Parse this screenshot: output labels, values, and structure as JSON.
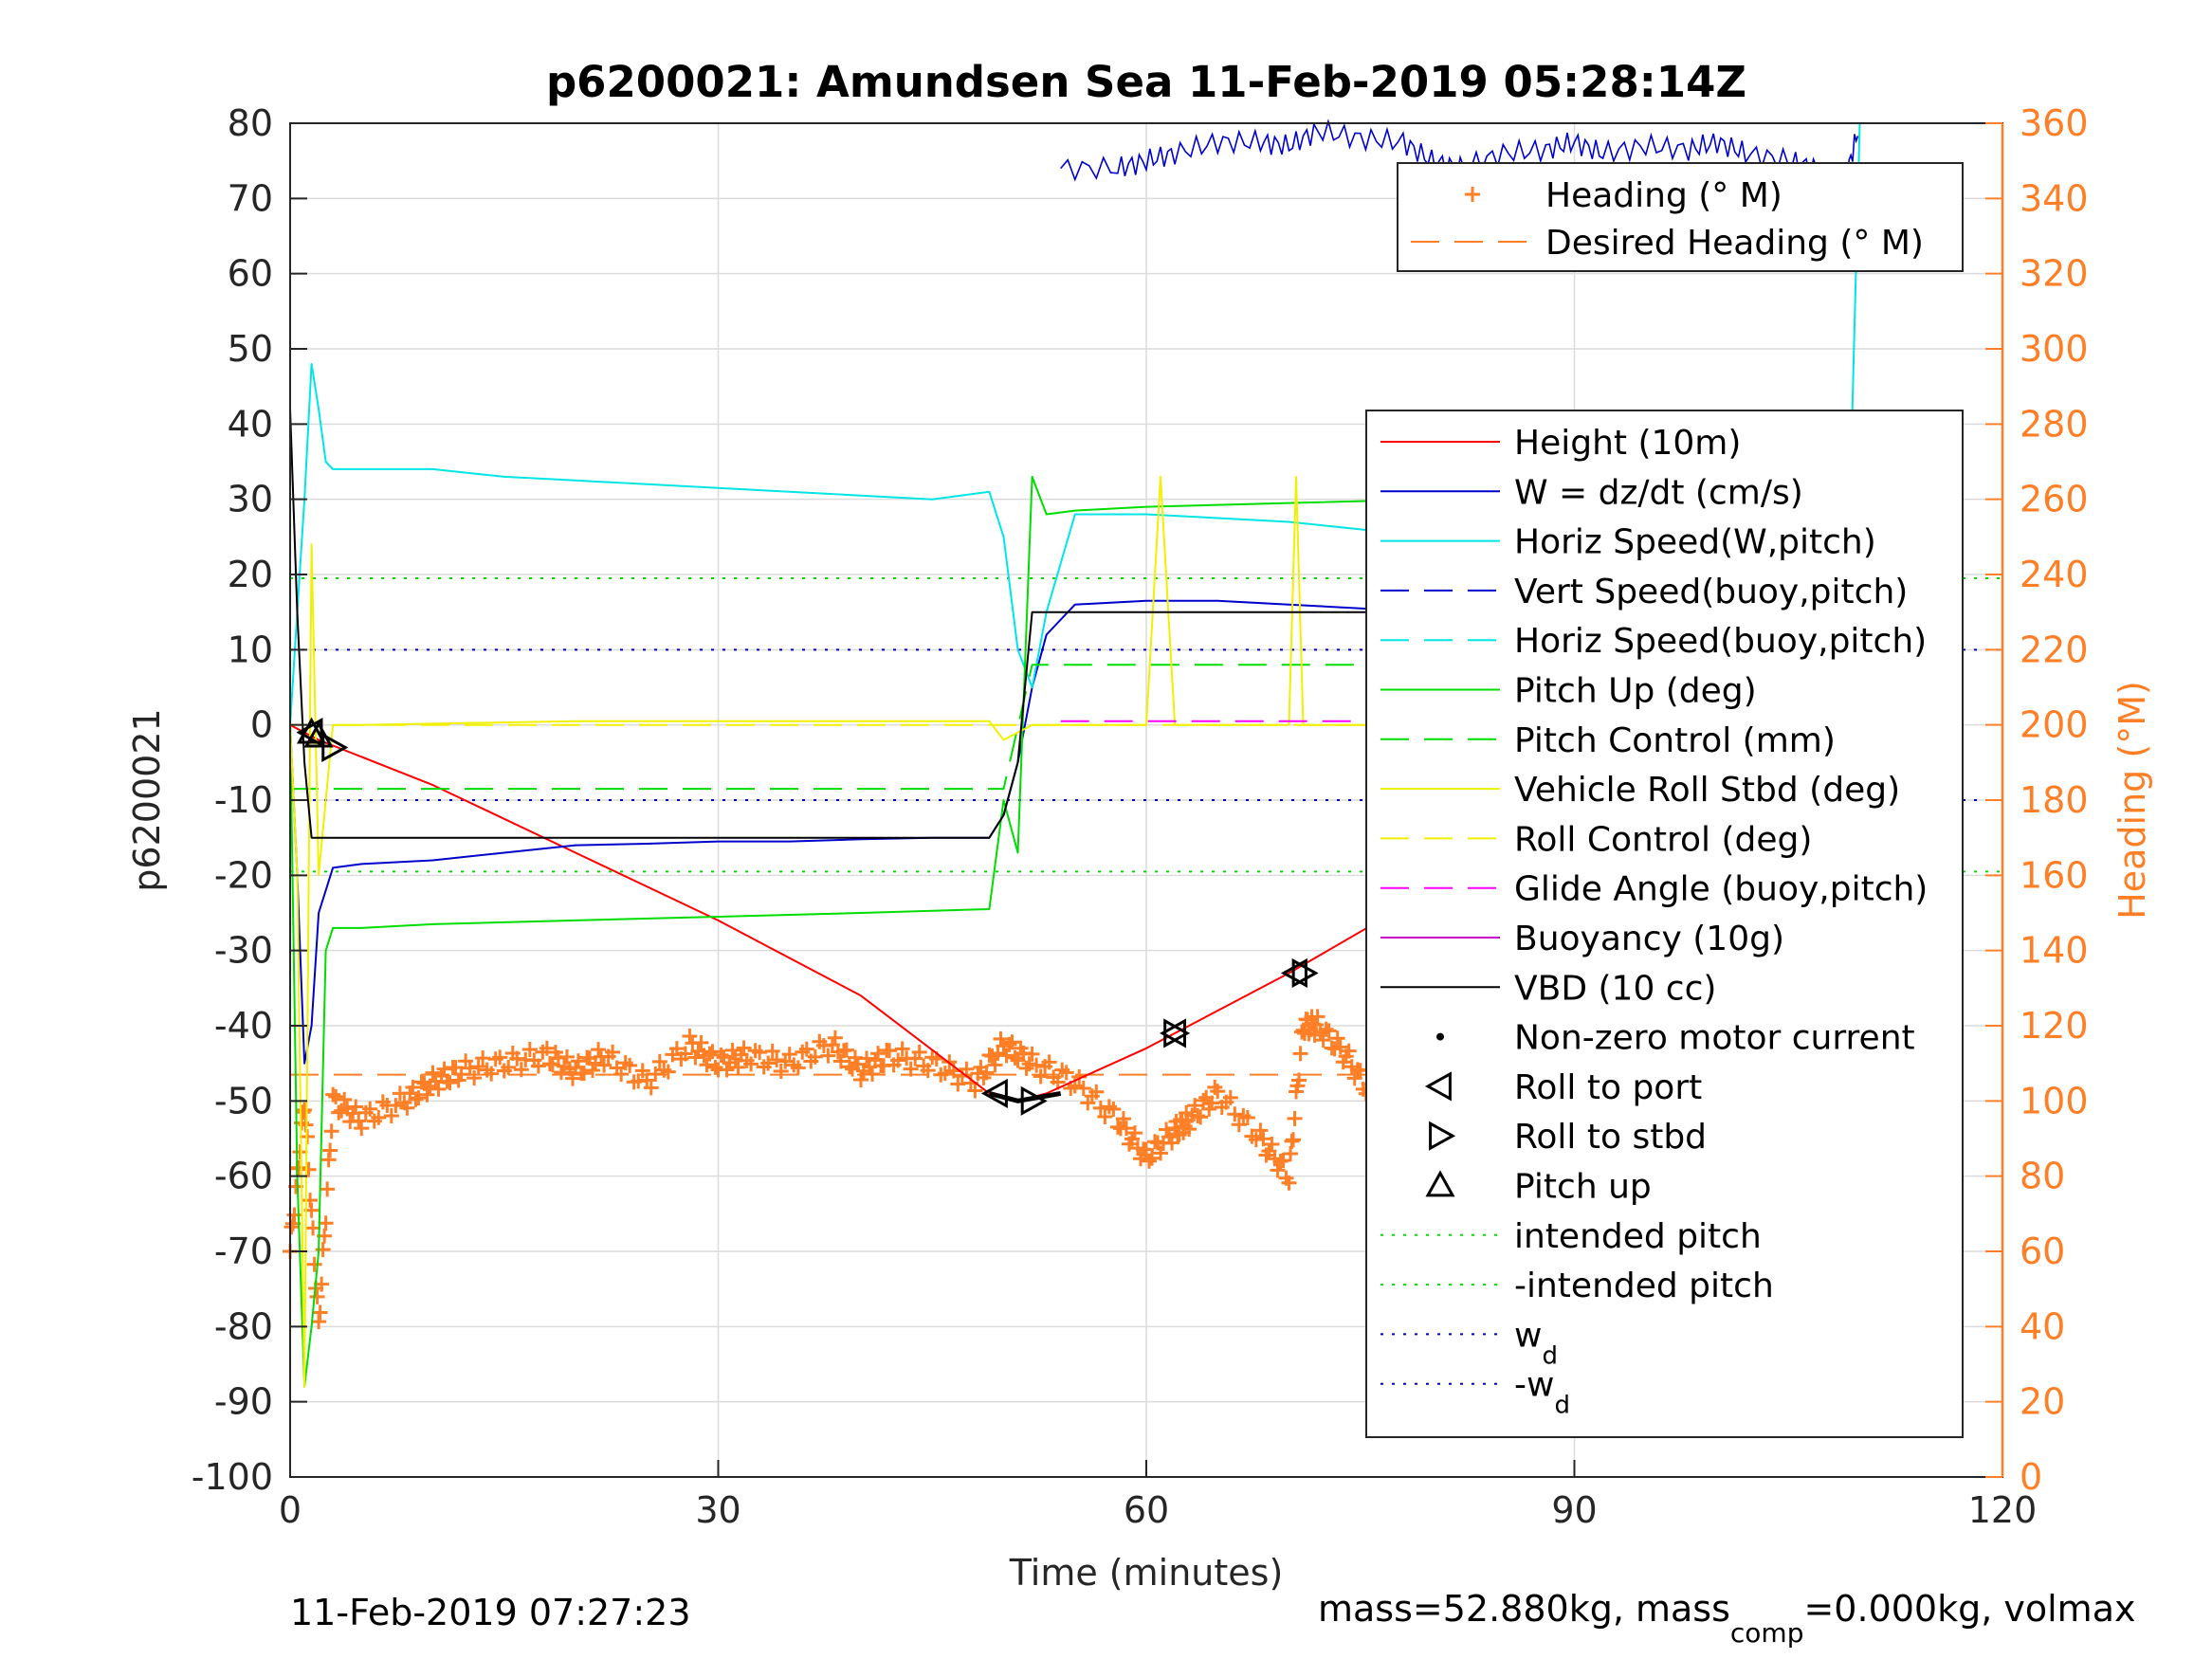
{
  "chart_data": {
    "type": "line",
    "title": "p6200021: Amundsen Sea 11-Feb-2019 05:28:14Z",
    "xlabel": "Time (minutes)",
    "ylabel": "p6200021",
    "y2label": "Heading (°M)",
    "xlim": [
      0,
      120
    ],
    "ylim": [
      -100,
      80
    ],
    "y2lim": [
      0,
      360
    ],
    "xticks": [
      "0",
      "30",
      "60",
      "90",
      "120"
    ],
    "yticks": [
      "80",
      "70",
      "60",
      "50",
      "40",
      "30",
      "20",
      "10",
      "0",
      "-10",
      "-20",
      "-30",
      "-40",
      "-50",
      "-60",
      "-70",
      "-80",
      "-90",
      "-100"
    ],
    "y2ticks": [
      "360",
      "340",
      "320",
      "300",
      "280",
      "260",
      "240",
      "220",
      "200",
      "180",
      "160",
      "140",
      "120",
      "100",
      "80",
      "60",
      "40",
      "20",
      "0"
    ],
    "grid": true,
    "heading_legend": {
      "placement": "top-right",
      "entries": [
        {
          "label": "Heading (° M)",
          "color": "#FF7F27",
          "style": "plus"
        },
        {
          "label": "Desired Heading (° M)",
          "color": "#FF7F27",
          "style": "dashed"
        }
      ]
    },
    "legend": {
      "placement": "right",
      "entries": [
        {
          "label": "Height (10m)",
          "color": "#FF0000",
          "style": "solid"
        },
        {
          "label": "W = dz/dt (cm/s)",
          "color": "#0000CC",
          "style": "solid"
        },
        {
          "label": "Horiz Speed(W,pitch)",
          "color": "#00E5E5",
          "style": "solid"
        },
        {
          "label": "Vert Speed(buoy,pitch)",
          "color": "#0000CC",
          "style": "dashed"
        },
        {
          "label": "Horiz Speed(buoy,pitch)",
          "color": "#00E5E5",
          "style": "dashed"
        },
        {
          "label": "Pitch Up (deg)",
          "color": "#00DD00",
          "style": "solid"
        },
        {
          "label": "Pitch Control (mm)",
          "color": "#00DD00",
          "style": "dashed"
        },
        {
          "label": "Vehicle Roll Stbd (deg)",
          "color": "#F0F000",
          "style": "solid"
        },
        {
          "label": "Roll Control (deg)",
          "color": "#F0F000",
          "style": "dashed"
        },
        {
          "label": "Glide Angle (buoy,pitch)",
          "color": "#FF00FF",
          "style": "dashed"
        },
        {
          "label": "Buoyancy (10g)",
          "color": "#CC00CC",
          "style": "solid"
        },
        {
          "label": "VBD (10 cc)",
          "color": "#000000",
          "style": "solid"
        },
        {
          "label": "Non-zero motor current",
          "color": "#000000",
          "style": "dot"
        },
        {
          "label": "Roll to port",
          "color": "#000000",
          "style": "tri-left"
        },
        {
          "label": "Roll to stbd",
          "color": "#000000",
          "style": "tri-right"
        },
        {
          "label": "Pitch up",
          "color": "#000000",
          "style": "tri-up"
        },
        {
          "label": "intended pitch",
          "color": "#00DD00",
          "style": "dotted"
        },
        {
          "label": "-intended pitch",
          "color": "#00DD00",
          "style": "dotted"
        },
        {
          "label": "w",
          "sub": "d",
          "color": "#0000CC",
          "style": "dotted"
        },
        {
          "label": "-w",
          "sub": "d",
          "color": "#0000CC",
          "style": "dotted"
        }
      ]
    },
    "hlines": [
      {
        "name": "intended pitch",
        "y": 19.5,
        "color": "#00DD00"
      },
      {
        "name": "-intended pitch",
        "y": -19.5,
        "color": "#00DD00"
      },
      {
        "name": "w_d",
        "y": 10,
        "color": "#0000CC"
      },
      {
        "name": "-w_d",
        "y": -10,
        "color": "#0000CC"
      }
    ],
    "desired_heading": 107,
    "series": [
      {
        "name": "Height (10m)",
        "color": "#FF0000",
        "style": "solid",
        "x": [
          0,
          1,
          2,
          10,
          20,
          30,
          40,
          49,
          51,
          53,
          60,
          70,
          80,
          90,
          100,
          107,
          110
        ],
        "y": [
          0,
          -1,
          -2,
          -8,
          -17,
          -26,
          -36,
          -49,
          -50,
          -49,
          -43,
          -33,
          -22,
          -16,
          -8,
          -2,
          0
        ]
      },
      {
        "name": "W = dz/dt (cm/s)",
        "color": "#0000CC",
        "style": "solid",
        "x": [
          0,
          0.5,
          1,
          1.5,
          2,
          3,
          5,
          10,
          15,
          20,
          25,
          30,
          35,
          40,
          45,
          49,
          50,
          51,
          52,
          53,
          55,
          60,
          65,
          70,
          75,
          80,
          85,
          90,
          95,
          100,
          105,
          108,
          109,
          110
        ],
        "y": [
          0,
          -20,
          -45,
          -40,
          -25,
          -19,
          -18.5,
          -18,
          -17,
          -16,
          -15.8,
          -15.5,
          -15.5,
          -15.2,
          -15,
          -15,
          -12,
          -5,
          5,
          12,
          16,
          16.5,
          16.5,
          16,
          15.5,
          15,
          14,
          13.5,
          13,
          12,
          10.5,
          7,
          8,
          20
        ]
      },
      {
        "name": "Horiz Speed(W,pitch)",
        "color": "#00E5E5",
        "style": "solid",
        "x": [
          0,
          0.5,
          1,
          1.5,
          2,
          2.5,
          3,
          5,
          10,
          15,
          20,
          25,
          30,
          35,
          40,
          45,
          49,
          50,
          51,
          52,
          53,
          55,
          60,
          65,
          70,
          75,
          80,
          85,
          90,
          95,
          100,
          105,
          107,
          108,
          109,
          110
        ],
        "y": [
          0,
          15,
          30,
          48,
          42,
          35,
          34,
          34,
          34,
          33,
          32.5,
          32,
          31.5,
          31,
          30.5,
          30,
          31,
          25,
          10,
          5,
          15,
          28,
          28,
          27.5,
          27,
          26,
          25,
          24,
          23,
          22,
          20,
          17,
          15,
          8,
          7,
          80
        ]
      },
      {
        "name": "Pitch Up (deg)",
        "color": "#00DD00",
        "style": "solid",
        "x": [
          0,
          0.5,
          1,
          1.5,
          2,
          2.5,
          3,
          5,
          10,
          20,
          30,
          40,
          49,
          50,
          51,
          52,
          53,
          55,
          60,
          70,
          80,
          90,
          100,
          105,
          108,
          110
        ],
        "y": [
          0,
          -60,
          -88,
          -80,
          -70,
          -30,
          -27,
          -27,
          -26.5,
          -26,
          -25.5,
          -25,
          -24.5,
          -10,
          -17,
          33,
          28,
          28.5,
          29,
          29.5,
          30,
          29.5,
          28.5,
          28,
          26,
          30
        ]
      },
      {
        "name": "Pitch Control (mm)",
        "color": "#00DD00",
        "style": "dashed",
        "x": [
          0,
          49,
          50,
          52,
          53,
          110
        ],
        "y": [
          -8.5,
          -8.5,
          -8.5,
          8,
          8,
          8
        ]
      },
      {
        "name": "Vehicle Roll Stbd (deg)",
        "color": "#F0F000",
        "style": "solid",
        "x": [
          0,
          0.5,
          1,
          1.5,
          2,
          3,
          5,
          20,
          40,
          49,
          50,
          52,
          60,
          61,
          62,
          63,
          70,
          70.5,
          71,
          72,
          82,
          83,
          84,
          90,
          100,
          107,
          108,
          109,
          110
        ],
        "y": [
          0,
          -20,
          -88,
          24,
          -20,
          0,
          0,
          0.5,
          0.5,
          0.5,
          -2,
          0,
          0,
          33,
          0,
          0,
          0,
          33,
          0,
          0,
          0,
          35,
          0,
          0,
          0,
          0,
          33,
          0,
          0
        ]
      },
      {
        "name": "Roll Control (deg)",
        "color": "#F0F000",
        "style": "dashed",
        "x": [
          0,
          110
        ],
        "y": [
          0,
          0
        ]
      },
      {
        "name": "Glide Angle (buoy,pitch)",
        "color": "#FF00FF",
        "style": "dashed",
        "x": [
          54,
          110
        ],
        "y": [
          0.5,
          0.5
        ]
      },
      {
        "name": "VBD (10 cc)",
        "color": "#000000",
        "style": "solid",
        "x": [
          0,
          0.5,
          1,
          1.5,
          2,
          49,
          50,
          51,
          52,
          110
        ],
        "y": [
          42,
          15,
          -5,
          -15,
          -15,
          -15,
          -12,
          -5,
          15,
          15
        ]
      }
    ],
    "heading_series": {
      "name": "Heading (° M)",
      "x": [
        0,
        1,
        2,
        3,
        5,
        8,
        10,
        12,
        15,
        18,
        20,
        22,
        25,
        28,
        30,
        32,
        35,
        38,
        40,
        42,
        45,
        48,
        50,
        52,
        55,
        58,
        60,
        62,
        63,
        65,
        68,
        70,
        71,
        72,
        74,
        76,
        78,
        80,
        81,
        82,
        83,
        84,
        85,
        87,
        90,
        92,
        95,
        97,
        100,
        102,
        105,
        107,
        108,
        109,
        110
      ],
      "y": [
        60,
        100,
        40,
        100,
        95,
        100,
        105,
        108,
        110,
        112,
        108,
        112,
        105,
        115,
        110,
        112,
        110,
        115,
        108,
        112,
        110,
        105,
        115,
        110,
        105,
        95,
        85,
        92,
        95,
        102,
        90,
        80,
        120,
        120,
        112,
        100,
        95,
        80,
        70,
        75,
        100,
        115,
        112,
        100,
        90,
        100,
        85,
        100,
        115,
        108,
        105,
        85,
        120,
        170,
        148
      ]
    },
    "heading_trace": {
      "name": "heading trace",
      "x": [
        54,
        58,
        60,
        62,
        65,
        68,
        70,
        72,
        75,
        78,
        80,
        82,
        85,
        88,
        90,
        92,
        95,
        98,
        100,
        102,
        105,
        107,
        108,
        109,
        110
      ],
      "y": [
        348,
        348,
        350,
        352,
        355,
        355,
        354,
        358,
        356,
        355,
        350,
        348,
        352,
        353,
        355,
        352,
        354,
        353,
        355,
        352,
        350,
        348,
        330,
        345,
        360
      ]
    },
    "markers": {
      "pitch_up": [
        {
          "x": 1.5,
          "y": -1
        },
        {
          "x": 2,
          "y": -1.5
        },
        {
          "x": 110.5,
          "y": 0
        }
      ],
      "roll_to_port": [
        {
          "x": 1.5,
          "y": -1
        },
        {
          "x": 49.5,
          "y": -49
        },
        {
          "x": 62,
          "y": -41
        },
        {
          "x": 70.5,
          "y": -33
        },
        {
          "x": 83.5,
          "y": -21
        },
        {
          "x": 89.5,
          "y": -15.5
        },
        {
          "x": 97.5,
          "y": -9.5
        },
        {
          "x": 108,
          "y": -1
        },
        {
          "x": 110.5,
          "y": 0
        }
      ],
      "roll_to_stbd": [
        {
          "x": 3,
          "y": -3
        },
        {
          "x": 52,
          "y": -50
        },
        {
          "x": 62,
          "y": -41
        },
        {
          "x": 71,
          "y": -33
        },
        {
          "x": 84,
          "y": -21
        },
        {
          "x": 90,
          "y": -15.5
        },
        {
          "x": 98,
          "y": -9.5
        },
        {
          "x": 108.5,
          "y": -1
        },
        {
          "x": 111,
          "y": 0
        }
      ]
    },
    "footer_left": "11-Feb-2019 07:27:23",
    "footer_right_prefix": "mass=52.880kg, mass",
    "footer_right_sub": "comp",
    "footer_right_suffix": "=0.000kg, volmax"
  }
}
